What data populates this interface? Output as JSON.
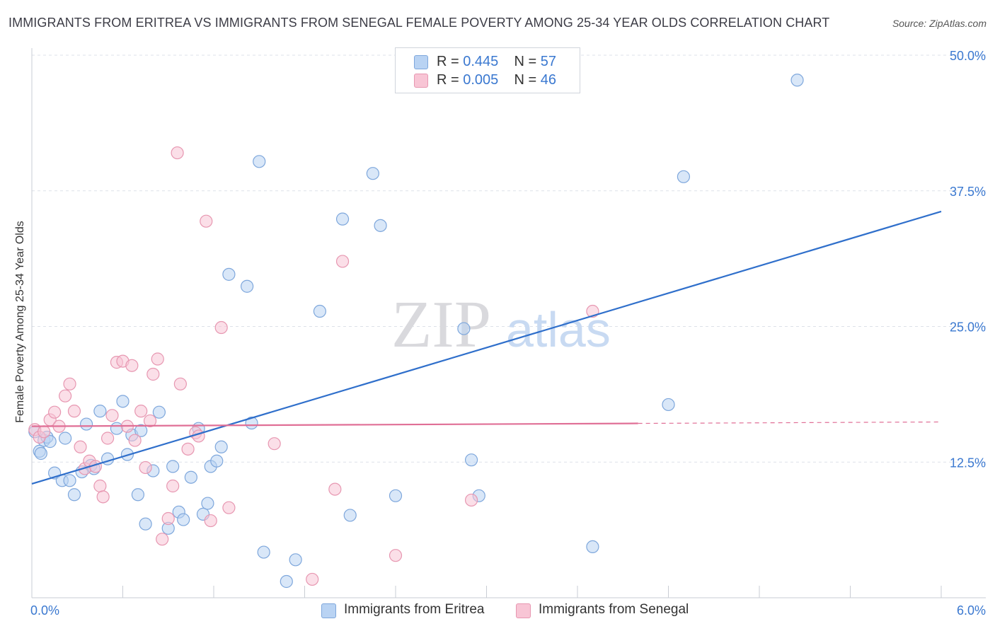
{
  "title": "IMMIGRANTS FROM ERITREA VS IMMIGRANTS FROM SENEGAL FEMALE POVERTY AMONG 25-34 YEAR OLDS CORRELATION CHART",
  "source": "Source: ZipAtlas.com",
  "watermark": {
    "zip": "ZIP",
    "atlas": "atlas"
  },
  "legend_top": [
    {
      "r_label": "R = ",
      "r_value": "0.445",
      "n_label": "N = ",
      "n_value": "57"
    },
    {
      "r_label": "R = ",
      "r_value": "0.005",
      "n_label": "N = ",
      "n_value": "46"
    }
  ],
  "legend_bottom": [
    "Immigrants from Eritrea",
    "Immigrants from Senegal"
  ],
  "colors": {
    "eritrea_fill": "#b9d3f3",
    "eritrea_stroke": "#7ea7dc",
    "eritrea_line": "#2f6fcb",
    "senegal_fill": "#f8c5d5",
    "senegal_stroke": "#e797b1",
    "senegal_line": "#e06f96",
    "axis_label": "#3a78d0",
    "grid": "#dde1e8"
  },
  "chart_data": {
    "type": "scatter",
    "title": "IMMIGRANTS FROM ERITREA VS IMMIGRANTS FROM SENEGAL FEMALE POVERTY AMONG 25-34 YEAR OLDS CORRELATION CHART",
    "xlabel": "",
    "ylabel": "Female Poverty Among 25-34 Year Olds",
    "xlim": [
      0,
      6
    ],
    "ylim": [
      0,
      50
    ],
    "x_tick_labels": [
      "0.0%",
      "6.0%"
    ],
    "y_ticks": [
      12.5,
      25.0,
      37.5,
      50.0
    ],
    "y_tick_labels": [
      "12.5%",
      "25.0%",
      "37.5%",
      "50.0%"
    ],
    "grid": "horizontal dashed",
    "legend_position": "top-center and bottom",
    "series": [
      {
        "name": "Immigrants from Eritrea",
        "r": 0.445,
        "n": 57,
        "trend": {
          "x": [
            0,
            6
          ],
          "y": [
            10.5,
            35.6
          ],
          "dashed_from_x": null
        },
        "points": [
          [
            0.02,
            15.3
          ],
          [
            0.05,
            13.5
          ],
          [
            0.08,
            14.5
          ],
          [
            0.1,
            14.8
          ],
          [
            0.15,
            11.5
          ],
          [
            0.2,
            10.8
          ],
          [
            0.22,
            14.7
          ],
          [
            0.28,
            9.5
          ],
          [
            0.33,
            11.6
          ],
          [
            0.36,
            16.0
          ],
          [
            0.39,
            12.2
          ],
          [
            0.41,
            11.9
          ],
          [
            0.45,
            17.2
          ],
          [
            0.5,
            12.8
          ],
          [
            0.56,
            15.6
          ],
          [
            0.6,
            18.1
          ],
          [
            0.63,
            13.2
          ],
          [
            0.66,
            15.0
          ],
          [
            0.7,
            9.5
          ],
          [
            0.72,
            15.4
          ],
          [
            0.75,
            6.8
          ],
          [
            0.8,
            11.7
          ],
          [
            0.84,
            17.1
          ],
          [
            0.9,
            6.4
          ],
          [
            0.93,
            12.1
          ],
          [
            0.97,
            7.9
          ],
          [
            1.0,
            7.2
          ],
          [
            1.05,
            11.1
          ],
          [
            1.1,
            15.6
          ],
          [
            1.13,
            7.7
          ],
          [
            1.16,
            8.7
          ],
          [
            1.18,
            12.1
          ],
          [
            1.22,
            12.6
          ],
          [
            1.25,
            13.9
          ],
          [
            1.3,
            29.8
          ],
          [
            1.42,
            28.7
          ],
          [
            1.45,
            16.1
          ],
          [
            1.5,
            40.2
          ],
          [
            1.53,
            4.2
          ],
          [
            1.74,
            3.5
          ],
          [
            1.68,
            1.5
          ],
          [
            1.9,
            26.4
          ],
          [
            2.05,
            34.9
          ],
          [
            2.1,
            7.6
          ],
          [
            2.25,
            39.1
          ],
          [
            2.3,
            34.3
          ],
          [
            2.4,
            9.4
          ],
          [
            2.95,
            9.4
          ],
          [
            2.85,
            24.8
          ],
          [
            2.9,
            12.7
          ],
          [
            3.7,
            4.7
          ],
          [
            4.2,
            17.8
          ],
          [
            4.3,
            38.8
          ],
          [
            5.05,
            47.7
          ],
          [
            0.06,
            13.3
          ],
          [
            0.25,
            10.8
          ],
          [
            0.12,
            14.4
          ]
        ]
      },
      {
        "name": "Immigrants from Senegal",
        "r": 0.005,
        "n": 46,
        "trend": {
          "x": [
            0,
            6
          ],
          "y": [
            15.8,
            16.2
          ],
          "dashed_from_x": 4.0
        },
        "points": [
          [
            0.02,
            15.5
          ],
          [
            0.05,
            14.8
          ],
          [
            0.08,
            15.3
          ],
          [
            0.12,
            16.4
          ],
          [
            0.15,
            17.1
          ],
          [
            0.18,
            15.8
          ],
          [
            0.22,
            18.6
          ],
          [
            0.25,
            19.7
          ],
          [
            0.28,
            17.2
          ],
          [
            0.32,
            13.9
          ],
          [
            0.35,
            11.9
          ],
          [
            0.38,
            12.6
          ],
          [
            0.42,
            12.1
          ],
          [
            0.45,
            10.3
          ],
          [
            0.47,
            9.3
          ],
          [
            0.5,
            14.7
          ],
          [
            0.53,
            16.8
          ],
          [
            0.56,
            21.7
          ],
          [
            0.6,
            21.8
          ],
          [
            0.63,
            15.8
          ],
          [
            0.66,
            21.4
          ],
          [
            0.68,
            14.5
          ],
          [
            0.72,
            17.2
          ],
          [
            0.75,
            12.0
          ],
          [
            0.78,
            16.3
          ],
          [
            0.8,
            20.6
          ],
          [
            0.83,
            22.0
          ],
          [
            0.86,
            5.4
          ],
          [
            0.9,
            7.3
          ],
          [
            0.93,
            10.3
          ],
          [
            0.96,
            41.0
          ],
          [
            0.98,
            19.7
          ],
          [
            1.03,
            13.7
          ],
          [
            1.08,
            15.2
          ],
          [
            1.1,
            14.9
          ],
          [
            1.15,
            34.7
          ],
          [
            1.18,
            7.1
          ],
          [
            1.25,
            24.9
          ],
          [
            1.3,
            8.3
          ],
          [
            1.6,
            14.2
          ],
          [
            1.85,
            1.7
          ],
          [
            2.0,
            10.0
          ],
          [
            2.05,
            31.0
          ],
          [
            2.4,
            3.9
          ],
          [
            2.9,
            9.0
          ],
          [
            3.7,
            26.4
          ]
        ]
      }
    ]
  }
}
